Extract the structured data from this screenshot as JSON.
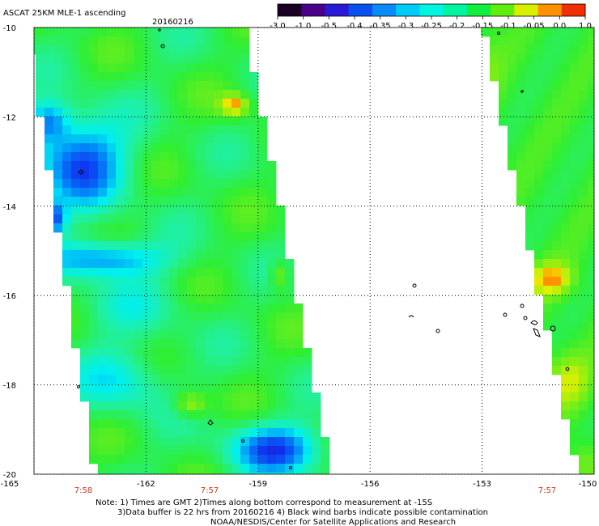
{
  "header": {
    "title": "ASCAT 25KM MLE-1 ascending",
    "date": "20160216"
  },
  "colorbar": {
    "labels": [
      "-3.0",
      "-1.0",
      "-0.5",
      "-0.4",
      "-0.35",
      "-0.3",
      "-0.25",
      "-0.2",
      "-0.15",
      "-0.1",
      "-0.05",
      "0.0",
      "1.0"
    ],
    "colors": [
      "#1a0022",
      "#4a008a",
      "#2a1ad8",
      "#0a50f0",
      "#0a8cf8",
      "#00ccfa",
      "#00f5e0",
      "#00f5a0",
      "#10ee40",
      "#60ee10",
      "#d8f000",
      "#ff9000",
      "#f03000"
    ]
  },
  "map": {
    "lon_range": [
      -165,
      -150
    ],
    "lat_range": [
      -20,
      -10
    ],
    "x_ticks": [
      "-165",
      "-162",
      "-159",
      "-156",
      "-153",
      "-150"
    ],
    "y_ticks": [
      "-10",
      "-12",
      "-14",
      "-16",
      "-18",
      "-20"
    ],
    "times": [
      "7:58",
      "7:57",
      "7:57"
    ]
  },
  "footer": {
    "line1": "Note: 1) Times are GMT 2)Times along bottom correspond to measurement at -15S",
    "line2": "3)Data buffer is 22 hrs from 20160216 4) Black wind barbs indicate possible contamination",
    "line3": "NOAA/NESDIS/Center for Satellite Applications and Research"
  }
}
